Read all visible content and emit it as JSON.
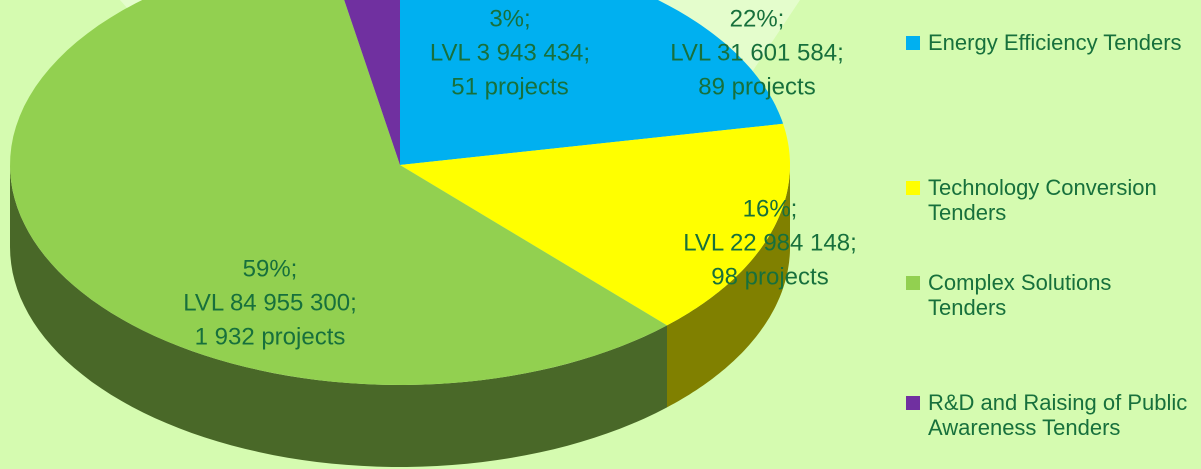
{
  "chart_data": {
    "type": "pie",
    "categories": [
      "Energy Efficiency Tenders",
      "Technology Conversion Tenders",
      "Complex Solutions Tenders",
      "R&D and Raising of Public Awareness Tenders"
    ],
    "values": [
      22,
      16,
      59,
      3
    ],
    "value_labels": [
      "22%;",
      "16%;",
      "59%;",
      "3%;"
    ],
    "amount_labels": [
      "LVL 31 601 584;",
      "LVL 22 984 148;",
      "LVL 84 955 300;",
      "LVL 3 943 434;"
    ],
    "project_labels": [
      "89 projects",
      "98 projects",
      "1 932 projects",
      "51 projects"
    ],
    "colors": [
      "#00b0f0",
      "#ffff00",
      "#92d050",
      "#7030a0"
    ],
    "legend": "right"
  }
}
